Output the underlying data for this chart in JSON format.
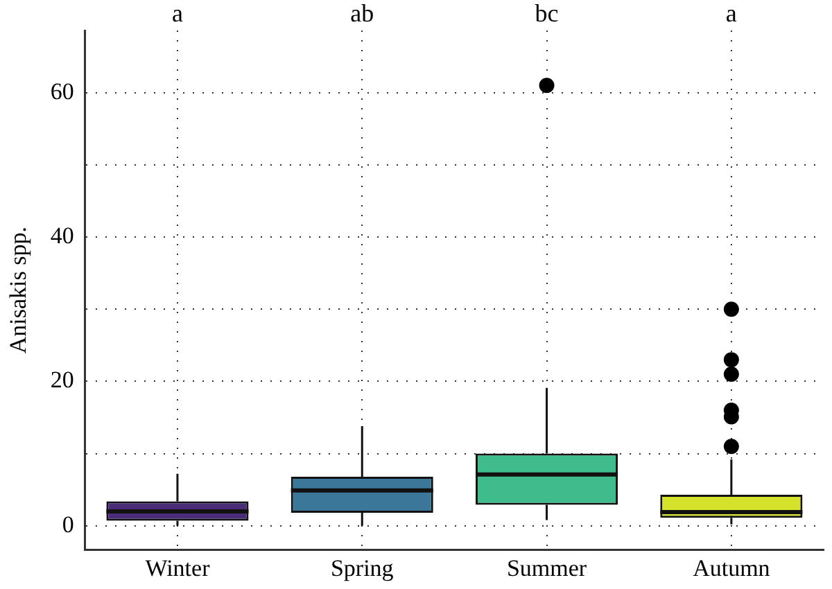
{
  "chart_data": {
    "type": "box",
    "ylabel": "Anisakis spp.",
    "categories": [
      "Winter",
      "Spring",
      "Summer",
      "Autumn"
    ],
    "colors": [
      "#4b2c7a",
      "#3a7799",
      "#3fbc8b",
      "#d4e22c"
    ],
    "boxes": [
      {
        "low": 0,
        "q1": 0.7,
        "median": 2.0,
        "q3": 3.4,
        "high": 7.2
      },
      {
        "low": 0,
        "q1": 1.8,
        "median": 4.9,
        "q3": 6.8,
        "high": 13.8
      },
      {
        "low": 0.8,
        "q1": 2.9,
        "median": 7.1,
        "q3": 10.0,
        "high": 19.1,
        "outliers": [
          61
        ]
      },
      {
        "low": 0.2,
        "q1": 1.1,
        "median": 1.9,
        "q3": 4.3,
        "high": 9.2,
        "outliers": [
          30,
          23,
          21,
          16,
          15.1,
          11
        ]
      }
    ],
    "ylim": [
      -3.3,
      68.6
    ],
    "yticks": [
      0,
      {
        "value": 10,
        "label": null
      },
      20,
      {
        "value": 30,
        "label": null
      },
      40,
      {
        "value": 50,
        "label": null
      },
      60
    ],
    "grid": true,
    "annotations": [
      "a",
      "ab",
      "bc",
      "a"
    ]
  }
}
